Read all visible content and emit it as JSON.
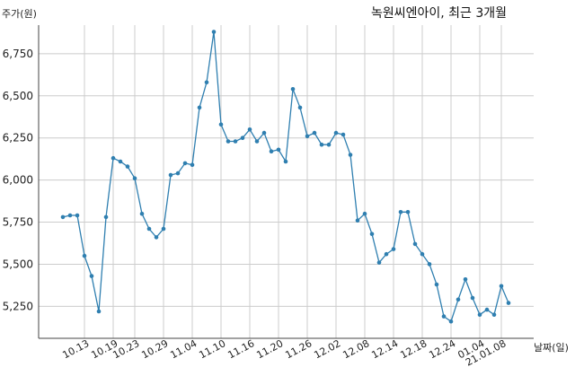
{
  "chart_data": {
    "type": "line",
    "title": "녹원씨엔아이, 최근 3개월",
    "xlabel": "날짜(일)",
    "ylabel": "주가(원)",
    "ylim": [
      5060,
      6920
    ],
    "yticks": [
      5250,
      5500,
      5750,
      6000,
      6250,
      6500,
      6750
    ],
    "ytick_labels": [
      "5,250",
      "5,500",
      "5,750",
      "6,000",
      "6,250",
      "6,500",
      "6,750"
    ],
    "xticks": [
      {
        "index": 3,
        "label": "10.13"
      },
      {
        "index": 7,
        "label": "10.19"
      },
      {
        "index": 10,
        "label": "10.23"
      },
      {
        "index": 14,
        "label": "10.29"
      },
      {
        "index": 18,
        "label": "11.04"
      },
      {
        "index": 22,
        "label": "11.10"
      },
      {
        "index": 26,
        "label": "11.16"
      },
      {
        "index": 30,
        "label": "11.20"
      },
      {
        "index": 34,
        "label": "11.26"
      },
      {
        "index": 38,
        "label": "12.02"
      },
      {
        "index": 42,
        "label": "12.08"
      },
      {
        "index": 46,
        "label": "12.14"
      },
      {
        "index": 50,
        "label": "12.18"
      },
      {
        "index": 54,
        "label": "12.24"
      },
      {
        "index": 58,
        "label": "01.04"
      },
      {
        "index": 61,
        "label": "21.01.08"
      }
    ],
    "grid": true,
    "series": [
      {
        "values": [
          5780,
          5790,
          5790,
          5550,
          5430,
          5220,
          5780,
          6130,
          6110,
          6080,
          6010,
          5800,
          5710,
          5660,
          5710,
          6030,
          6040,
          6100,
          6090,
          6430,
          6580,
          6880,
          6330,
          6230,
          6230,
          6250,
          6300,
          6230,
          6280,
          6170,
          6180,
          6110,
          6540,
          6430,
          6260,
          6280,
          6210,
          6210,
          6280,
          6270,
          6150,
          5760,
          5800,
          5680,
          5510,
          5560,
          5590,
          5810,
          5810,
          5620,
          5560,
          5500,
          5380,
          5190,
          5160,
          5290,
          5410,
          5300,
          5200,
          5230,
          5200,
          5370,
          5270
        ]
      }
    ]
  }
}
